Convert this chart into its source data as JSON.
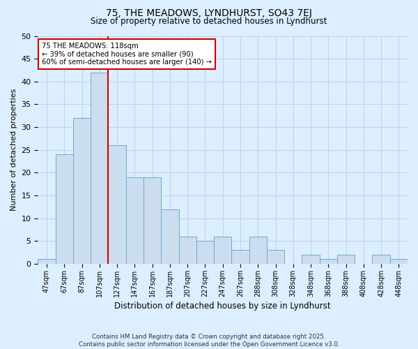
{
  "title": "75, THE MEADOWS, LYNDHURST, SO43 7EJ",
  "subtitle": "Size of property relative to detached houses in Lyndhurst",
  "xlabel": "Distribution of detached houses by size in Lyndhurst",
  "ylabel": "Number of detached properties",
  "footer_line1": "Contains HM Land Registry data © Crown copyright and database right 2025.",
  "footer_line2": "Contains public sector information licensed under the Open Government Licence v3.0.",
  "bins": [
    "47sqm",
    "67sqm",
    "87sqm",
    "107sqm",
    "127sqm",
    "147sqm",
    "167sqm",
    "187sqm",
    "207sqm",
    "227sqm",
    "247sqm",
    "267sqm",
    "288sqm",
    "308sqm",
    "328sqm",
    "348sqm",
    "368sqm",
    "388sqm",
    "408sqm",
    "428sqm",
    "448sqm"
  ],
  "values": [
    1,
    24,
    32,
    42,
    26,
    19,
    19,
    12,
    6,
    5,
    6,
    3,
    6,
    3,
    0,
    2,
    1,
    2,
    0,
    2,
    1
  ],
  "bar_color": "#ccddf0",
  "bar_edge_color": "#6aaad4",
  "vline_color": "#cc0000",
  "annotation_text": "75 THE MEADOWS: 118sqm\n← 39% of detached houses are smaller (90)\n60% of semi-detached houses are larger (140) →",
  "annotation_box_color": "white",
  "annotation_box_edge": "#cc0000",
  "ylim": [
    0,
    50
  ],
  "yticks": [
    0,
    5,
    10,
    15,
    20,
    25,
    30,
    35,
    40,
    45,
    50
  ],
  "grid_color": "#b8cce0",
  "bg_color": "#ddeeff",
  "plot_bg_color": "#ddeeff"
}
